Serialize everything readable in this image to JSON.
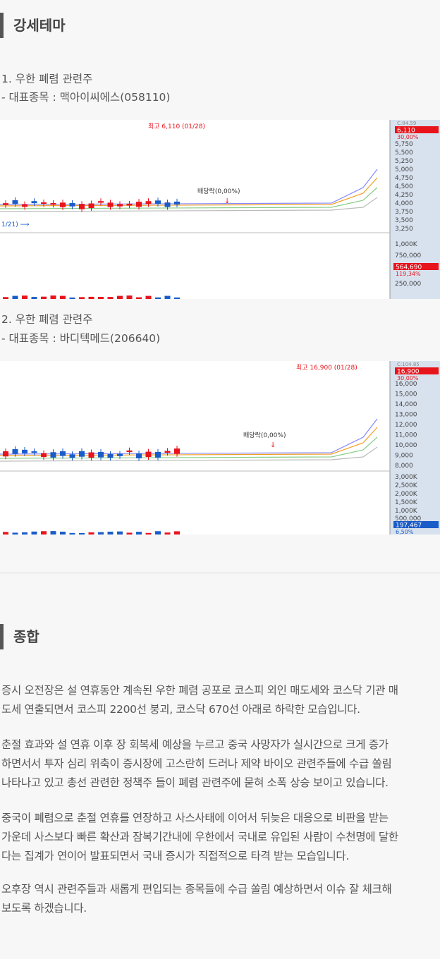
{
  "section1": {
    "title": "강세테마"
  },
  "themes": [
    {
      "title": "1. 우한 폐렴 관련주",
      "stock": "- 대표종목 : 맥아이씨에스(058110)",
      "chart": {
        "high_label": "최고 6,110 (01/28)",
        "low_label": "1/21)",
        "dividend_label": "배당락(0,00%)",
        "price_ticks": [
          "5,750",
          "5,500",
          "5,250",
          "5,000",
          "4,750",
          "4,500",
          "4,250",
          "4,000",
          "3,750",
          "3,500",
          "3,250"
        ],
        "volume_ticks": [
          "1,000K",
          "750,000",
          "250,000"
        ],
        "top_tags": [
          "C:84.59",
          "6,110",
          "30,00%"
        ],
        "vol_tags": [
          "564,690",
          "119,34%"
        ]
      }
    },
    {
      "title": "2. 우한 폐렴 관련주",
      "stock": "- 대표종목 : 바디텍메드(206640)",
      "chart": {
        "high_label": "최고 16,900 (01/28)",
        "dividend_label": "배당락(0,00%)",
        "price_ticks": [
          "16,000",
          "15,000",
          "14,000",
          "13,000",
          "12,000",
          "11,000",
          "10,000",
          "9,000",
          "8,000"
        ],
        "volume_ticks": [
          "3,000K",
          "2,500K",
          "2,000K",
          "1,500K",
          "1,000K",
          "500,000"
        ],
        "top_tags": [
          "C:104.85",
          "16,900",
          "30,00%"
        ],
        "vol_tags": [
          "197,467",
          "6,50%"
        ]
      }
    }
  ],
  "section2": {
    "title": "종합"
  },
  "paragraphs": [
    [
      "증시 오전장은 설 연휴동안 계속된 우한 폐렴 공포로 코스피 외인 매도세와 코스닥 기관 매",
      "도세 연출되면서 코스피 2200선 붕괴, 코스닥 670선 아래로 하락한 모습입니다."
    ],
    [
      "춘절 효과와 설 연휴 이후 장 회복세 예상을 누르고 중국 사망자가 실시간으로 크게 증가",
      "하면서서 투자 심리 위축이 증시장에 고스란히 드러나 제약 바이오 관련주들에 수급 쏠림",
      "나타나고 있고 총선 관련한 정책주 들이 폐렴 관련주에 묻혀 소폭 상승 보이고 있습니다."
    ],
    [
      "중국이 폐렴으로 춘절 연휴를 연장하고 사스사태에 이어서 뒤늦은 대응으로 비판을 받는",
      "가운데 사스보다 빠른 확산과 잠복기간내에 우한에서 국내로 유입된 사람이 수천명에 달한",
      "다는 집계가 연이어 발표되면서 국내 증시가 직접적으로 타격 받는 모습입니다."
    ],
    [
      "오후장 역시 관련주들과 새롭게 편입되는 종목들에 수급 쏠림 예상하면서 이슈 잘 체크해",
      "보도록 하겠습니다."
    ]
  ],
  "colors": {
    "up": "#e8141c",
    "down": "#1a5cc8",
    "axis_bg": "#d8e2ee"
  }
}
